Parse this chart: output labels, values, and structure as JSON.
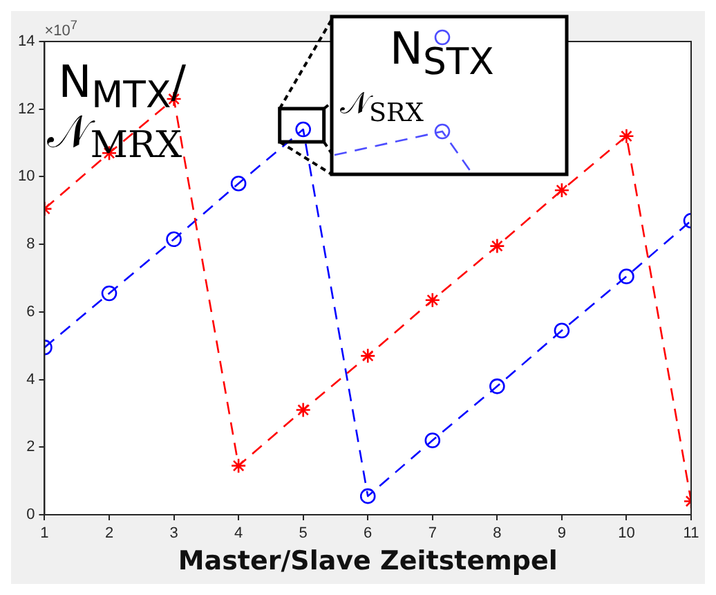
{
  "chart_data": {
    "type": "line",
    "xlabel": "Master/Slave Zeitstempel",
    "x": [
      1,
      2,
      3,
      4,
      5,
      6,
      7,
      8,
      9,
      10,
      11
    ],
    "series": [
      {
        "color": "#ff0000",
        "marker": "cross",
        "values": [
          9.05,
          10.7,
          12.3,
          1.45,
          3.1,
          4.7,
          6.35,
          7.95,
          9.6,
          11.2,
          0.4
        ]
      },
      {
        "color": "#0000ff",
        "marker": "circle",
        "values": [
          4.95,
          6.55,
          8.15,
          9.8,
          11.4,
          0.55,
          2.2,
          3.8,
          5.45,
          7.05,
          8.7
        ]
      }
    ],
    "xlim": [
      1,
      11
    ],
    "xticks": [
      1,
      2,
      3,
      4,
      5,
      6,
      7,
      8,
      9,
      10,
      11
    ],
    "ylim": [
      0,
      14
    ],
    "yticks": [
      0,
      2,
      4,
      6,
      8,
      10,
      12,
      14
    ],
    "line_style": "dashed",
    "grid": false,
    "legend": false,
    "annotations": [
      "×10$^{7}$",
      "N$_{MTX}$/",
      "𝒩$_{MRX}$",
      "N$_{STX}$",
      "𝒩$_{SRX}$"
    ]
  }
}
